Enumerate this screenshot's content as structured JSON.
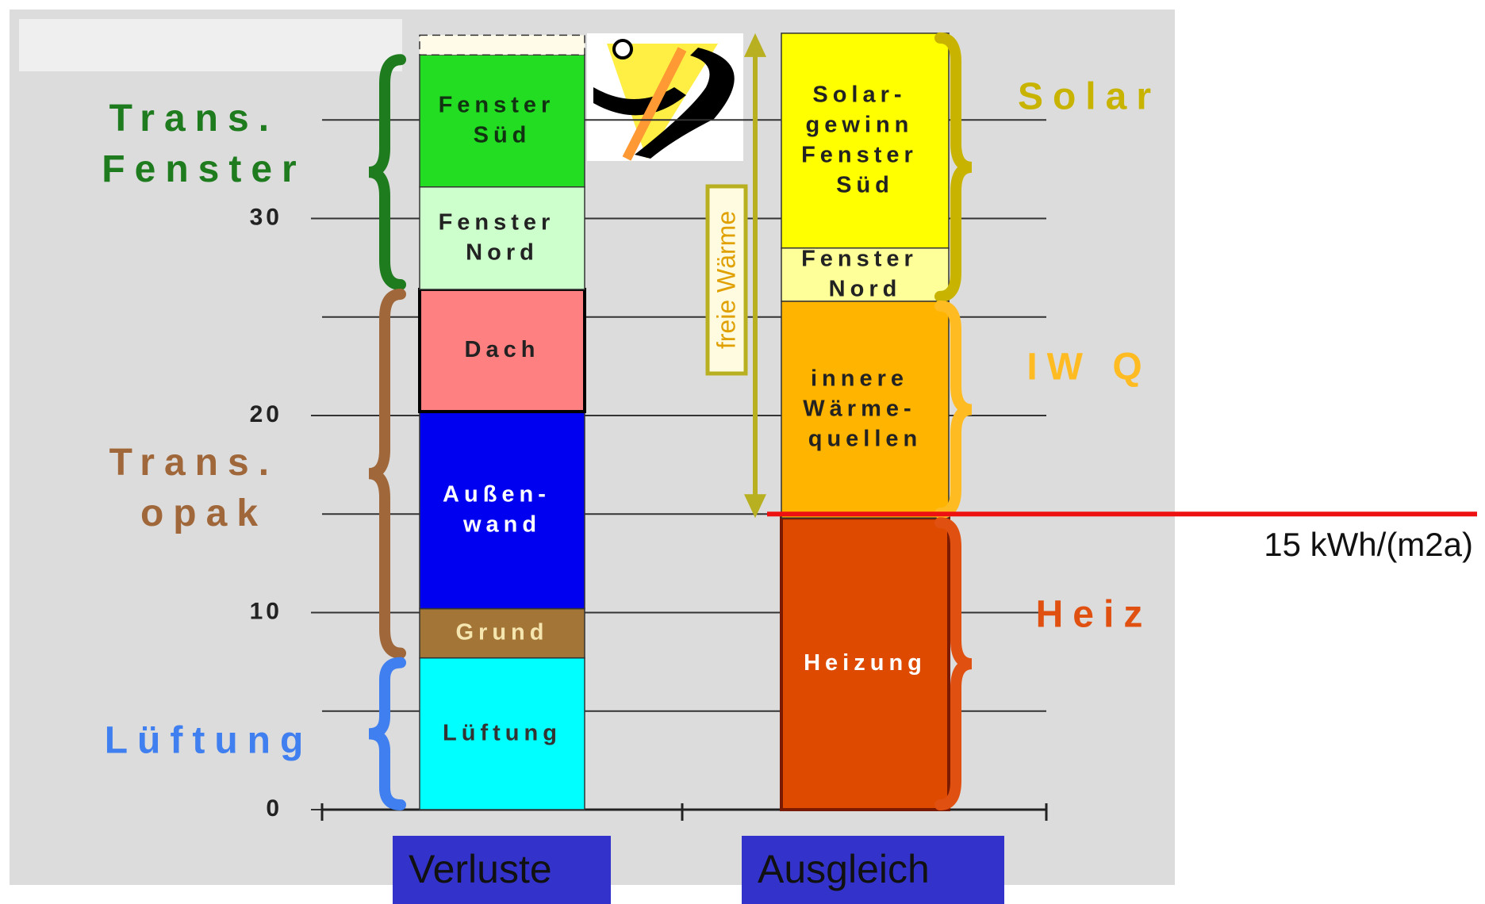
{
  "chart_data": {
    "type": "stacked_bar",
    "categories": [
      "Verluste",
      "Ausgleich"
    ],
    "ylim": [
      0,
      40
    ],
    "yticks": [
      0,
      10,
      20,
      30
    ],
    "minor_yticks": [
      5,
      15,
      25,
      35
    ],
    "grid": true,
    "series": [
      {
        "name": "Lüftung",
        "color": "#00ffff",
        "label_color": "#333333",
        "values": [
          7.7,
          null
        ]
      },
      {
        "name": "Grund",
        "color": "#a37638",
        "label_color": "#f5e6b0",
        "values": [
          2.5,
          null
        ]
      },
      {
        "name": "Außen- wand",
        "color": "#0000f0",
        "label_color": "#ffffff",
        "values": [
          10,
          null
        ]
      },
      {
        "name": "Dach",
        "color": "#ff8080",
        "label_color": "#222222",
        "edge_color": "#000000",
        "values": [
          6.2,
          null
        ]
      },
      {
        "name": "Fenster Nord",
        "color": "#ccffcc",
        "label_color": "#222222",
        "values": [
          5.2,
          null
        ]
      },
      {
        "name": "Fenster Süd",
        "color": "#22dd22",
        "label_color": "#113311",
        "values": [
          6.7,
          null
        ]
      },
      {
        "color": "#fffbe8",
        "dashed": true,
        "values": [
          1.0,
          null
        ]
      },
      {
        "name": "Heizung",
        "color": "#dd4a00",
        "label_color": "#ffffff",
        "edge_color": "#7a1a00",
        "values": [
          null,
          14.8
        ]
      },
      {
        "name": "innere Wärme- quellen",
        "color": "#ffb400",
        "label_color": "#222222",
        "values": [
          null,
          11
        ]
      },
      {
        "name": "Fenster Nord",
        "color": "#ffff99",
        "label_color": "#222222",
        "values": [
          null,
          2.7
        ]
      },
      {
        "name": "Solar- gewinn Fenster Süd",
        "color": "#ffff00",
        "label_color": "#222222",
        "values": [
          null,
          10.9
        ]
      }
    ],
    "annotations": [
      {
        "text": "Trans. Fenster",
        "color": "#1e7b1e"
      },
      {
        "text": "Trans. opak",
        "color": "#a0683a"
      },
      {
        "text": "Lüftung",
        "color": "#3f7fef"
      },
      {
        "text": "Solar",
        "color": "#c8b400"
      },
      {
        "text": "IW Q",
        "color": "#ffbb22"
      },
      {
        "text": "Heiz",
        "color": "#e05010"
      }
    ],
    "arrow_label": {
      "text": "freie Wärme",
      "color": "#e0a000"
    },
    "reference_line": {
      "value": 15,
      "label": "15 kWh/(m2a)",
      "color": "#ee1111"
    }
  }
}
